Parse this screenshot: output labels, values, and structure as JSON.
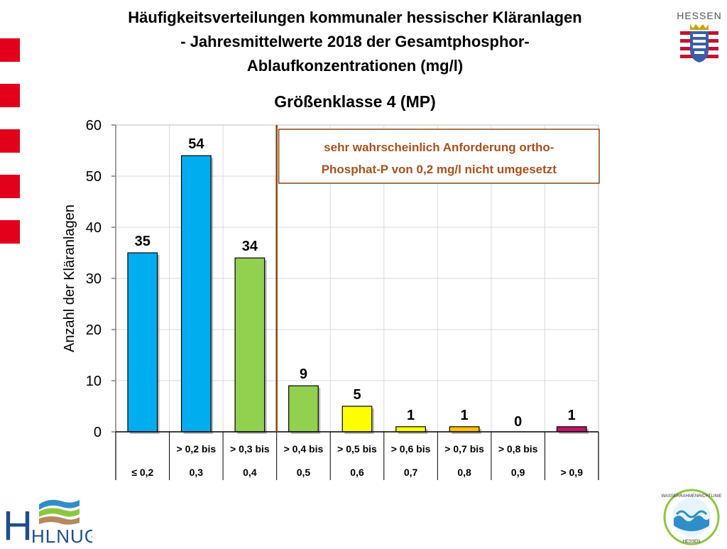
{
  "title_lines": [
    "Häufigkeitsverteilungen kommunaler hessischer Kläranlagen",
    "- Jahresmittelwerte 2018 der Gesamtphosphor-",
    "Ablaufkonzentrationen (mg/l)"
  ],
  "logos": {
    "hessen": "HESSEN",
    "hlnug": "HLNUG",
    "wrrl_top": "WASSERRAHMENRICHTLINIE",
    "wrrl_bottom": "HESSEN"
  },
  "colors": {
    "blue": "#00adef",
    "green": "#92d050",
    "yellow": "#ffff00",
    "orange": "#ffc000",
    "magenta": "#c0146b",
    "brand_red": "#e2001a",
    "annotation_text": "#a8511f",
    "annotation_border": "#8b4513",
    "divider": "#8b4513"
  },
  "chart_data": {
    "type": "bar",
    "title": "Größenklasse 4 (MP)",
    "ylabel": "Anzahl der Kläranlagen",
    "xlabel": "",
    "ylim": [
      0,
      60
    ],
    "yticks": [
      0,
      10,
      20,
      30,
      40,
      50,
      60
    ],
    "grid": true,
    "categories": [
      {
        "line1": "",
        "line2": "≤ 0,2"
      },
      {
        "line1": "> 0,2 bis",
        "line2": "0,3"
      },
      {
        "line1": "> 0,3 bis",
        "line2": "0,4"
      },
      {
        "line1": "> 0,4 bis",
        "line2": "0,5"
      },
      {
        "line1": "> 0,5 bis",
        "line2": "0,6"
      },
      {
        "line1": "> 0,6 bis",
        "line2": "0,7"
      },
      {
        "line1": "> 0,7 bis",
        "line2": "0,8"
      },
      {
        "line1": "> 0,8 bis",
        "line2": "0,9"
      },
      {
        "line1": "",
        "line2": "> 0,9"
      }
    ],
    "values": [
      35,
      54,
      34,
      9,
      5,
      1,
      1,
      0,
      1
    ],
    "bar_colors": [
      "#00adef",
      "#00adef",
      "#92d050",
      "#92d050",
      "#ffff00",
      "#ffff00",
      "#ffc000",
      "#ffc000",
      "#c0146b"
    ],
    "annotation": {
      "lines": [
        "sehr wahrscheinlich Anforderung ortho-",
        "Phosphat-P von 0,2 mg/l nicht umgesetzt"
      ],
      "divider_after_category_index": 2
    }
  }
}
